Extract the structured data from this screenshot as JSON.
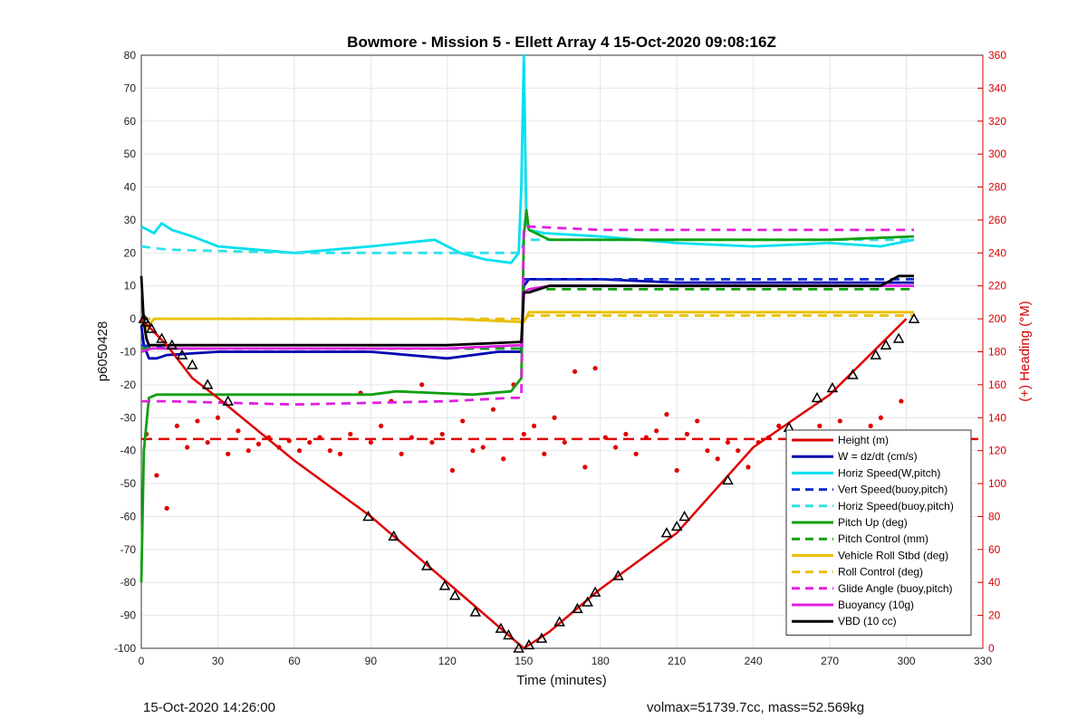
{
  "chart_data": {
    "type": "line",
    "title": "Bowmore - Mission 5 - Ellett Array 4 15-Oct-2020 09:08:16Z",
    "xlabel": "Time (minutes)",
    "ylabel": "p6050428",
    "ylabel_right": "(+) Heading (°M)",
    "xlim": [
      0,
      330
    ],
    "ylim": [
      -100,
      80
    ],
    "ylim_right": [
      0,
      360
    ],
    "xticks": [
      "0",
      "30",
      "60",
      "90",
      "120",
      "150",
      "180",
      "210",
      "240",
      "270",
      "300",
      "330"
    ],
    "yticks": [
      "80",
      "70",
      "60",
      "50",
      "40",
      "30",
      "20",
      "10",
      "0",
      "-10",
      "-20",
      "-30",
      "-40",
      "-50",
      "-60",
      "-70",
      "-80",
      "-90",
      "-100"
    ],
    "yticks_right": [
      "360",
      "340",
      "320",
      "300",
      "280",
      "260",
      "240",
      "220",
      "200",
      "180",
      "160",
      "140",
      "120",
      "100",
      "80",
      "60",
      "40",
      "20",
      "0"
    ],
    "grid": true,
    "legend_position": "bottom-right",
    "colors": {
      "height": "#e00000",
      "w": "#0000b0",
      "horiz_w": "#00e0f0",
      "vert_buoy": "#1030d0",
      "horiz_buoy": "#30e0e8",
      "pitch_up": "#10a010",
      "pitch_control": "#10a010",
      "roll": "#e8c000",
      "roll_control": "#e8c000",
      "glide": "#e020e0",
      "buoyancy": "#e020e0",
      "vbd": "#000000",
      "heading": "#e00000"
    },
    "series": [
      {
        "name": "Height (m)",
        "style": "solid",
        "color": "#e00000",
        "x": [
          0,
          10,
          20,
          30,
          60,
          90,
          120,
          150,
          160,
          180,
          210,
          240,
          270,
          300
        ],
        "y": [
          0,
          -8,
          -18,
          -24,
          -43,
          -60,
          -80,
          -100,
          -95,
          -82,
          -65,
          -39,
          -23,
          0
        ]
      },
      {
        "name": "W = dz/dt (cm/s)",
        "style": "solid",
        "color": "#0000b0",
        "x": [
          0,
          1,
          3,
          6,
          10,
          30,
          60,
          90,
          120,
          140,
          149,
          150,
          152,
          165,
          180,
          210,
          240,
          270,
          290,
          303
        ],
        "y": [
          -2,
          -8,
          -12,
          -12,
          -11,
          -10,
          -10,
          -10,
          -12,
          -10,
          -10,
          10,
          12,
          12,
          12,
          11,
          11,
          11,
          11,
          11
        ]
      },
      {
        "name": "Horiz Speed(W,pitch)",
        "style": "solid",
        "color": "#00e0f0",
        "x": [
          0,
          5,
          8,
          12,
          20,
          30,
          60,
          90,
          115,
          125,
          135,
          145,
          148,
          149,
          150,
          151,
          152,
          158,
          180,
          210,
          240,
          270,
          290,
          303
        ],
        "y": [
          28,
          26,
          29,
          27,
          25,
          22,
          20,
          22,
          24,
          20,
          18,
          17,
          20,
          40,
          80,
          30,
          27,
          26,
          25,
          23,
          22,
          23,
          22,
          24
        ]
      },
      {
        "name": "Vert Speed(buoy,pitch)",
        "style": "dashed",
        "color": "#1030d0",
        "x": [
          0,
          10,
          60,
          120,
          149,
          150,
          152,
          303
        ],
        "y": [
          -8,
          -9,
          -9,
          -9,
          -9,
          12,
          12,
          12
        ]
      },
      {
        "name": "Horiz Speed(buoy,pitch)",
        "style": "dashed",
        "color": "#30e0e8",
        "x": [
          0,
          10,
          60,
          120,
          149,
          150,
          152,
          303
        ],
        "y": [
          22,
          21,
          20,
          20,
          20,
          24,
          24,
          24
        ]
      },
      {
        "name": "Pitch Up (deg)",
        "style": "solid",
        "color": "#10a010",
        "x": [
          0,
          1,
          3,
          6,
          30,
          60,
          90,
          100,
          130,
          145,
          149,
          150,
          151,
          152,
          160,
          180,
          210,
          240,
          270,
          303
        ],
        "y": [
          -80,
          -40,
          -24,
          -23,
          -23,
          -23,
          -23,
          -22,
          -23,
          -22,
          -18,
          25,
          33,
          27,
          24,
          24,
          24,
          24,
          24,
          25
        ]
      },
      {
        "name": "Pitch Control (mm)",
        "style": "dashed",
        "color": "#10a010",
        "x": [
          0,
          3,
          60,
          120,
          149,
          150,
          152,
          303
        ],
        "y": [
          -9,
          -9,
          -9,
          -9,
          -9,
          9,
          9,
          9
        ]
      },
      {
        "name": "Vehicle Roll Stbd (deg)",
        "style": "solid",
        "color": "#e8c000",
        "x": [
          0,
          2,
          5,
          10,
          30,
          60,
          90,
          120,
          150,
          152,
          160,
          180,
          210,
          240,
          270,
          300,
          303
        ],
        "y": [
          -1,
          -3,
          0,
          0,
          0,
          0,
          0,
          0,
          -1,
          2,
          2,
          2,
          2,
          2,
          2,
          2,
          2
        ]
      },
      {
        "name": "Roll Control (deg)",
        "style": "dashed",
        "color": "#e8c000",
        "x": [
          0,
          30,
          60,
          90,
          120,
          149,
          150,
          152,
          180,
          210,
          240,
          270,
          303
        ],
        "y": [
          0,
          0,
          0,
          0,
          0,
          0,
          0,
          1,
          1,
          1,
          1,
          1,
          1
        ]
      },
      {
        "name": "Glide Angle (buoy,pitch)",
        "style": "dashed",
        "color": "#e020e0",
        "x": [
          0,
          10,
          60,
          120,
          145,
          149,
          150,
          152,
          180,
          210,
          240,
          270,
          303
        ],
        "y": [
          -25,
          -25,
          -26,
          -25,
          -24,
          -24,
          28,
          28,
          27,
          27,
          27,
          27,
          27
        ]
      },
      {
        "name": "Buoyancy (10g)",
        "style": "solid",
        "color": "#e020e0",
        "x": [
          0,
          4,
          60,
          120,
          149,
          150,
          152,
          160,
          303
        ],
        "y": [
          -10,
          -9,
          -9,
          -9,
          -8,
          8,
          9,
          10,
          10
        ]
      },
      {
        "name": "VBD (10 cc)",
        "style": "solid",
        "color": "#000000",
        "x": [
          0,
          1,
          2,
          3,
          6,
          60,
          120,
          149,
          150,
          152,
          160,
          180,
          210,
          240,
          270,
          290,
          297,
          303
        ],
        "y": [
          13,
          -1,
          -6,
          -8,
          -8,
          -8,
          -8,
          -7,
          8,
          8,
          10,
          10,
          10,
          10,
          10,
          10,
          13,
          13
        ]
      }
    ],
    "heading": {
      "name": "Heading (°M)",
      "axis": "right",
      "style": "dots",
      "color": "#e00000",
      "mean": 127,
      "x": [
        2,
        6,
        10,
        14,
        18,
        22,
        26,
        30,
        34,
        38,
        42,
        46,
        50,
        54,
        58,
        62,
        66,
        70,
        74,
        78,
        82,
        86,
        90,
        94,
        98,
        102,
        106,
        110,
        114,
        118,
        122,
        126,
        130,
        134,
        138,
        142,
        146,
        150,
        154,
        158,
        162,
        166,
        170,
        174,
        178,
        182,
        186,
        190,
        194,
        198,
        202,
        206,
        210,
        214,
        218,
        222,
        226,
        230,
        234,
        238,
        242,
        246,
        250,
        254,
        258,
        262,
        266,
        270,
        274,
        278,
        282,
        286,
        290,
        294,
        298,
        302
      ],
      "y": [
        130,
        105,
        85,
        135,
        122,
        138,
        125,
        140,
        118,
        132,
        120,
        124,
        128,
        122,
        126,
        120,
        125,
        128,
        120,
        118,
        130,
        155,
        125,
        135,
        150,
        118,
        128,
        160,
        125,
        130,
        108,
        138,
        120,
        122,
        145,
        115,
        160,
        130,
        135,
        118,
        140,
        125,
        168,
        110,
        170,
        128,
        122,
        130,
        118,
        128,
        132,
        142,
        108,
        130,
        138,
        120,
        115,
        125,
        120,
        110,
        125,
        128,
        135,
        120,
        122,
        128,
        135,
        120,
        138,
        125,
        110,
        135,
        140,
        130,
        150,
        125
      ]
    },
    "markers": {
      "series": "Height (m)",
      "x": [
        1,
        2,
        4,
        8,
        12,
        16,
        20,
        26,
        34,
        89,
        99,
        112,
        119,
        123,
        131,
        141,
        144,
        148,
        152,
        157,
        164,
        171,
        175,
        178,
        187,
        206,
        210,
        213,
        230,
        254,
        265,
        271,
        279,
        288,
        292,
        297,
        303
      ],
      "y": [
        0,
        -1,
        -3,
        -6,
        -8,
        -11,
        -14,
        -20,
        -25,
        -60,
        -66,
        -75,
        -81,
        -84,
        -89,
        -94,
        -96,
        -100,
        -99,
        -97,
        -92,
        -88,
        -86,
        -83,
        -78,
        -65,
        -63,
        -60,
        -49,
        -33,
        -24,
        -21,
        -17,
        -11,
        -8,
        -6,
        0
      ]
    },
    "legend": [
      {
        "label": "Height (m)",
        "color": "#e00000",
        "style": "solid"
      },
      {
        "label": "W = dz/dt (cm/s)",
        "color": "#0000b0",
        "style": "solid"
      },
      {
        "label": "Horiz Speed(W,pitch)",
        "color": "#00e0f0",
        "style": "solid"
      },
      {
        "label": "Vert Speed(buoy,pitch)",
        "color": "#1030d0",
        "style": "dashed"
      },
      {
        "label": "Horiz Speed(buoy,pitch)",
        "color": "#30e0e8",
        "style": "dashed"
      },
      {
        "label": "Pitch Up (deg)",
        "color": "#10a010",
        "style": "solid"
      },
      {
        "label": "Pitch Control (mm)",
        "color": "#10a010",
        "style": "dashed"
      },
      {
        "label": "Vehicle Roll Stbd (deg)",
        "color": "#e8c000",
        "style": "solid"
      },
      {
        "label": "Roll Control (deg)",
        "color": "#e8c000",
        "style": "dashed"
      },
      {
        "label": "Glide Angle (buoy,pitch)",
        "color": "#e020e0",
        "style": "dashed"
      },
      {
        "label": "Buoyancy (10g)",
        "color": "#e020e0",
        "style": "solid"
      },
      {
        "label": "VBD (10 cc)",
        "color": "#000000",
        "style": "solid"
      }
    ]
  },
  "footer": {
    "timestamp": "15-Oct-2020 14:26:00",
    "summary": "volmax=51739.7cc, mass=52.569kg"
  }
}
